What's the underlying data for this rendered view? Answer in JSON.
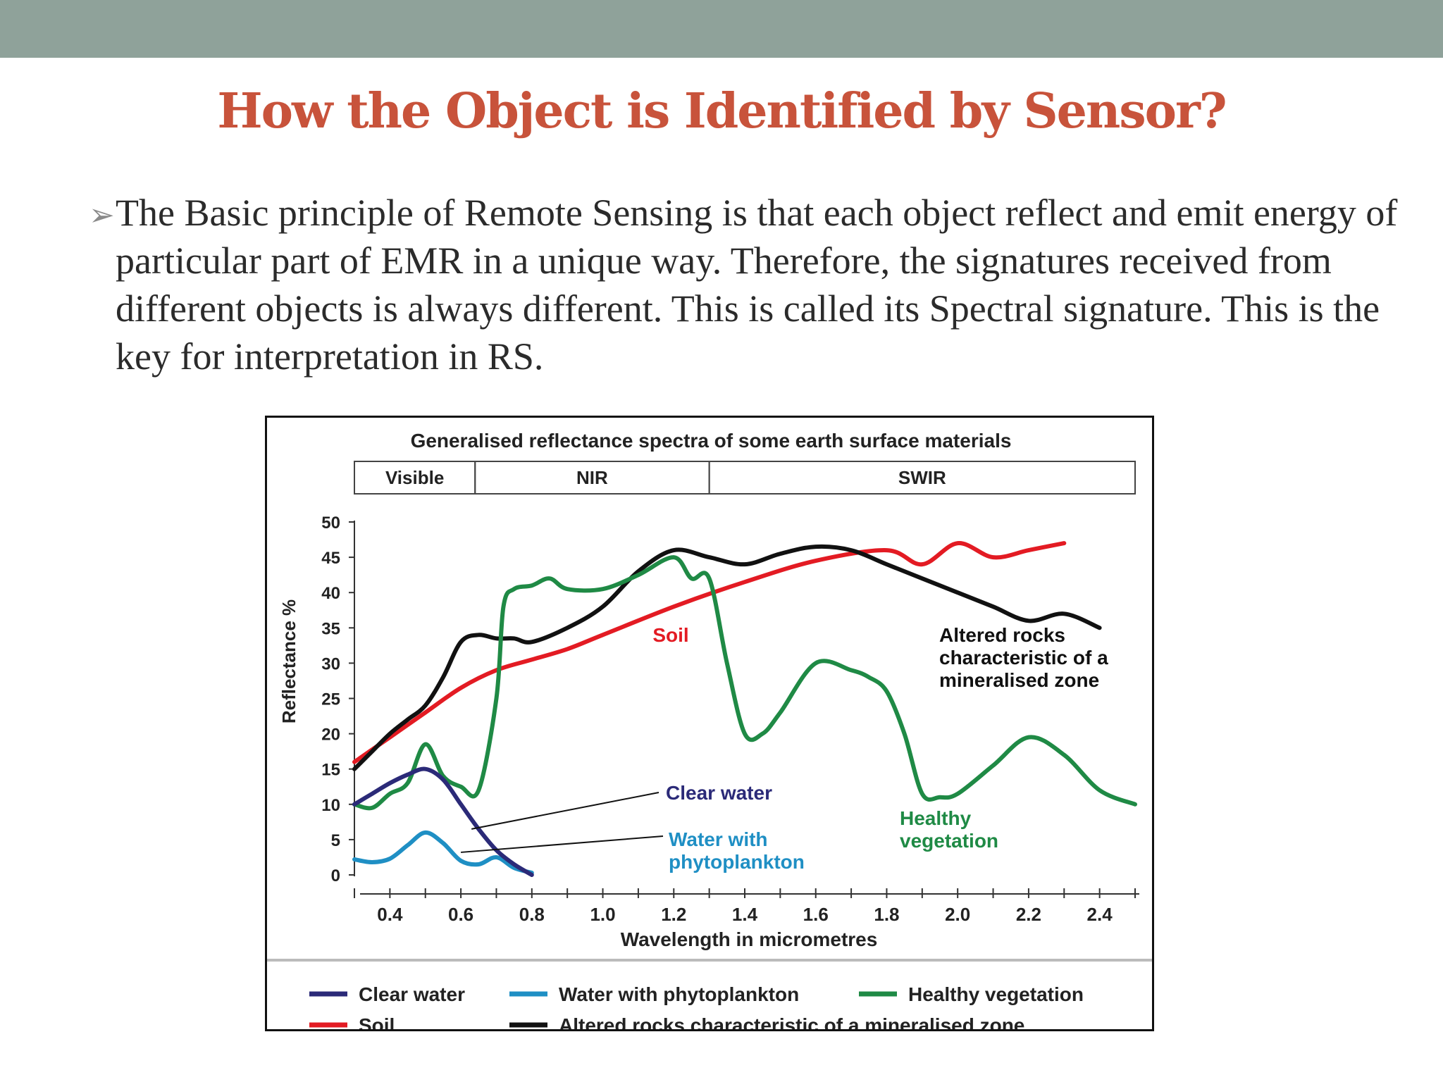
{
  "slide": {
    "title": "How the Object is Identified by Sensor?",
    "bullet_marker": "➢",
    "bullet_text": "The Basic principle of Remote Sensing is that each object reflect and emit energy of particular part of EMR in a unique way. Therefore, the signatures received from different objects is always different. This is called its Spectral signature. This is the key for interpretation in RS."
  },
  "chart_data": {
    "type": "line",
    "title": "Generalised reflectance spectra of some earth surface materials",
    "xlabel": "Wavelength in micrometres",
    "ylabel": "Reflectance %",
    "xlim": [
      0.3,
      2.5
    ],
    "ylim": [
      0,
      50
    ],
    "xticks": [
      0.4,
      0.6,
      0.8,
      1.0,
      1.2,
      1.4,
      1.6,
      1.8,
      2.0,
      2.2,
      2.4
    ],
    "xtick_labels": [
      "0.4",
      "0.6",
      "0.8",
      "1.0",
      "1.2",
      "1.4",
      "1.6",
      "1.8",
      "2.0",
      "2.2",
      "2.4"
    ],
    "yticks": [
      0,
      5,
      10,
      15,
      20,
      25,
      30,
      35,
      40,
      45,
      50
    ],
    "ytick_labels": [
      "0",
      "5",
      "10",
      "15",
      "20",
      "25",
      "30",
      "35",
      "40",
      "45",
      "50"
    ],
    "bands": [
      {
        "label": "Visible",
        "range": [
          0.3,
          0.64
        ]
      },
      {
        "label": "NIR",
        "range": [
          0.64,
          1.3
        ]
      },
      {
        "label": "SWIR",
        "range": [
          1.3,
          2.5
        ]
      }
    ],
    "series": [
      {
        "name": "Clear water",
        "color": "#2b2a78",
        "x": [
          0.3,
          0.35,
          0.4,
          0.45,
          0.5,
          0.55,
          0.6,
          0.65,
          0.7,
          0.75,
          0.8
        ],
        "y": [
          10,
          11.5,
          13,
          14.2,
          15,
          13.5,
          10,
          6.5,
          3.5,
          1.5,
          0
        ]
      },
      {
        "name": "Water with phytoplankton",
        "color": "#1f8fc4",
        "x": [
          0.3,
          0.35,
          0.4,
          0.45,
          0.5,
          0.55,
          0.6,
          0.65,
          0.7,
          0.75,
          0.8
        ],
        "y": [
          2.2,
          1.8,
          2.3,
          4.2,
          6,
          4.5,
          2,
          1.5,
          2.5,
          1,
          0.3
        ]
      },
      {
        "name": "Healthy vegetation",
        "color": "#1f8a45",
        "x": [
          0.3,
          0.35,
          0.4,
          0.45,
          0.5,
          0.55,
          0.6,
          0.65,
          0.7,
          0.72,
          0.75,
          0.8,
          0.85,
          0.9,
          1.0,
          1.1,
          1.2,
          1.25,
          1.3,
          1.35,
          1.4,
          1.45,
          1.5,
          1.6,
          1.7,
          1.75,
          1.8,
          1.85,
          1.9,
          1.95,
          2.0,
          2.1,
          2.2,
          2.3,
          2.4,
          2.5
        ],
        "y": [
          10,
          9.5,
          11.5,
          13,
          18.5,
          14,
          12.5,
          12,
          25,
          38,
          40.5,
          41,
          42,
          40.5,
          40.5,
          42.5,
          45,
          42,
          42,
          30,
          20,
          20,
          23,
          30,
          29,
          28,
          26,
          20,
          11.5,
          11,
          11.5,
          15.5,
          19.5,
          17,
          12,
          10
        ]
      },
      {
        "name": "Soil",
        "color": "#e31b23",
        "x": [
          0.3,
          0.4,
          0.5,
          0.6,
          0.7,
          0.8,
          0.9,
          1.0,
          1.2,
          1.4,
          1.6,
          1.8,
          1.9,
          2.0,
          2.1,
          2.2,
          2.3
        ],
        "y": [
          16,
          19.5,
          23,
          26.5,
          29,
          30.5,
          32,
          34,
          38,
          41.5,
          44.5,
          46,
          44,
          47,
          45,
          46,
          47
        ]
      },
      {
        "name": "Altered rocks characteristic of a mineralised zone",
        "color": "#111111",
        "x": [
          0.3,
          0.35,
          0.4,
          0.45,
          0.5,
          0.55,
          0.6,
          0.65,
          0.7,
          0.75,
          0.8,
          0.9,
          1.0,
          1.1,
          1.2,
          1.3,
          1.4,
          1.5,
          1.6,
          1.7,
          1.8,
          1.9,
          2.0,
          2.1,
          2.2,
          2.3,
          2.4
        ],
        "y": [
          15,
          17.5,
          20,
          22,
          24,
          28,
          33,
          34,
          33.5,
          33.5,
          33,
          35,
          38,
          43,
          46,
          45,
          44,
          45.5,
          46.5,
          46,
          44,
          42,
          40,
          38,
          36,
          37,
          35
        ]
      }
    ],
    "annotations": [
      {
        "text": "Soil",
        "color": "#e31b23"
      },
      {
        "text": "Altered rocks characteristic of a mineralised zone",
        "color": "#111111"
      },
      {
        "text": "Clear water",
        "color": "#2b2a78"
      },
      {
        "text": "Water with phytoplankton",
        "color": "#1f8fc4"
      },
      {
        "text": "Healthy vegetation",
        "color": "#1f8a45"
      }
    ],
    "legend": [
      "Clear water",
      "Water with phytoplankton",
      "Healthy vegetation",
      "Soil",
      "Altered rocks characteristic of a mineralised zone"
    ],
    "legend_placement": "bottom",
    "grid": false
  }
}
